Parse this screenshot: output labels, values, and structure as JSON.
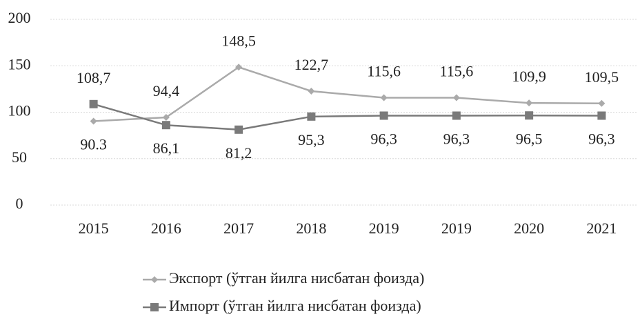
{
  "chart_data": {
    "type": "line",
    "categories": [
      "2015",
      "2016",
      "2017",
      "2018",
      "2019",
      "2019",
      "2020",
      "2021"
    ],
    "series": [
      {
        "name": "Экспорт (ўтган йилга нисбатан фоизда)",
        "color": "#aaaaaa",
        "marker": "diamond",
        "values": [
          90.3,
          94.4,
          148.5,
          122.7,
          115.6,
          115.6,
          109.9,
          109.5
        ],
        "value_labels": [
          "90.3",
          "94,4",
          "148,5",
          "122,7",
          "115,6",
          "115,6",
          "109,9",
          "109,5"
        ]
      },
      {
        "name": "Импорт (ўтган йилга нисбатан фоизда)",
        "color": "#7a7a7a",
        "marker": "square",
        "values": [
          108.7,
          86.1,
          81.2,
          95.3,
          96.3,
          96.3,
          96.5,
          96.3
        ],
        "value_labels": [
          "108,7",
          "86,1",
          "81,2",
          "95,3",
          "96,3",
          "96,3",
          "96,5",
          "96,3"
        ]
      }
    ],
    "ylim": [
      0,
      200
    ],
    "yticks": [
      0,
      50,
      100,
      150,
      200
    ],
    "grid": true,
    "legend": "bottom"
  }
}
